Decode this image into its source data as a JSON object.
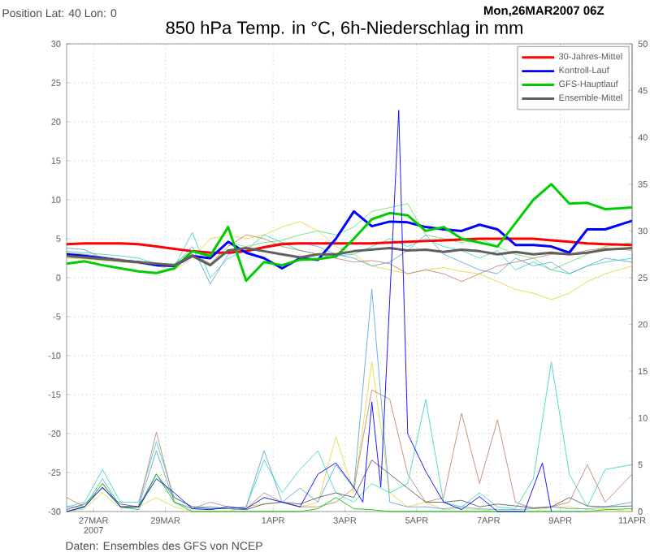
{
  "chart_data": {
    "type": "line",
    "title": "850 hPa Temp. in °C, 6h-Niederschlag in mm",
    "annotations": [
      "Position   Lat: 40 Lon: 0",
      "Mon,26MAR2007  06Z",
      "Daten: Ensembles des GFS von NCEP"
    ],
    "x": [
      "2007-03-26T06:00",
      "2007-03-26T18:00",
      "2007-03-27T06:00",
      "2007-03-27T18:00",
      "2007-03-28T06:00",
      "2007-03-28T18:00",
      "2007-03-29T06:00",
      "2007-03-29T18:00",
      "2007-03-30T06:00",
      "2007-03-30T18:00",
      "2007-03-31T06:00",
      "2007-03-31T18:00",
      "2007-04-01T06:00",
      "2007-04-01T18:00",
      "2007-04-02T06:00",
      "2007-04-02T18:00",
      "2007-04-03T06:00",
      "2007-04-03T18:00",
      "2007-04-04T06:00",
      "2007-04-04T18:00",
      "2007-04-05T06:00",
      "2007-04-05T18:00",
      "2007-04-06T06:00",
      "2007-04-06T18:00",
      "2007-04-07T06:00",
      "2007-04-07T18:00",
      "2007-04-08T06:00",
      "2007-04-08T18:00",
      "2007-04-09T06:00",
      "2007-04-09T18:00",
      "2007-04-10T06:00",
      "2007-04-11T00:00"
    ],
    "series": [
      {
        "color": "#e8d840",
        "values": [
          2.5,
          2.4,
          2.2,
          2.0,
          1.8,
          1.5,
          1.0,
          2.5,
          5.0,
          5.5,
          5.0,
          5.5,
          6.5,
          7.2,
          6.0,
          4.0,
          3.0,
          1.5,
          1.0,
          0.5,
          1.0,
          1.3,
          0.8,
          0.5,
          -0.5,
          -1.5,
          -2.0,
          -2.8,
          -2.0,
          -0.5,
          0.5,
          1.5
        ]
      },
      {
        "color": "#40d8c8",
        "values": [
          3.4,
          3.2,
          3.0,
          2.8,
          2.5,
          1.8,
          1.4,
          5.8,
          0.0,
          2.5,
          3.5,
          5.5,
          4.5,
          3.5,
          3.0,
          2.8,
          3.0,
          4.0,
          5.0,
          4.0,
          5.0,
          4.0,
          3.5,
          2.5,
          3.5,
          1.0,
          2.0,
          1.0,
          0.5,
          1.5,
          2.0,
          2.5
        ]
      },
      {
        "color": "#70e070",
        "values": [
          2.6,
          2.5,
          2.3,
          2.1,
          1.9,
          1.7,
          1.8,
          3.5,
          2.5,
          4.5,
          4.0,
          4.5,
          4.8,
          5.5,
          6.0,
          5.5,
          6.5,
          8.5,
          9.0,
          9.5,
          5.5,
          5.0,
          4.5,
          5.0,
          4.0,
          3.0,
          2.5,
          1.0,
          2.0,
          3.0,
          4.0,
          4.5
        ]
      },
      {
        "color": "#c08870",
        "values": [
          3.2,
          3.0,
          2.7,
          2.4,
          2.0,
          1.8,
          1.7,
          3.0,
          1.8,
          4.0,
          5.5,
          5.0,
          4.0,
          3.5,
          3.0,
          2.5,
          2.0,
          2.2,
          1.8,
          0.5,
          1.0,
          0.5,
          -0.5,
          0.5,
          1.5,
          2.0,
          2.5,
          3.0,
          3.0,
          3.5,
          3.8,
          3.5
        ]
      },
      {
        "color": "#60a8d8",
        "values": [
          3.8,
          3.6,
          2.5,
          2.2,
          2.0,
          1.8,
          1.5,
          4.0,
          -0.8,
          3.0,
          3.5,
          4.0,
          4.5,
          4.5,
          4.0,
          3.0,
          2.5,
          1.5,
          2.0,
          3.5,
          5.5,
          3.0,
          2.0,
          1.0,
          0.5,
          2.5,
          1.5,
          2.0,
          0.5,
          1.5,
          2.5,
          2.0
        ]
      },
      {
        "color": "#e8d840",
        "axis": "y2",
        "values": [
          0,
          0.3,
          2.0,
          0.3,
          0.5,
          1.5,
          0.5,
          0,
          0,
          0,
          0.5,
          0.8,
          1.0,
          0.5,
          1.0,
          8.0,
          2.0,
          16.0,
          2.0,
          0.5,
          1.0,
          0.2,
          0.3,
          0.2,
          0,
          0,
          0,
          0.5,
          0.5,
          0.2,
          0.3,
          0
        ]
      },
      {
        "color": "#40d8c8",
        "axis": "y2",
        "values": [
          0.5,
          1.0,
          4.5,
          1.0,
          1.0,
          7.5,
          1.5,
          0.5,
          0.5,
          0.3,
          0.5,
          5.5,
          2.0,
          4.5,
          6.5,
          2.0,
          1.0,
          3.0,
          2.0,
          3.0,
          12.0,
          1.0,
          0.5,
          2.0,
          0.5,
          0.3,
          3.5,
          16.0,
          4.0,
          0.5,
          4.5,
          5.0
        ]
      },
      {
        "color": "#c08870",
        "axis": "y2",
        "values": [
          1.5,
          0.5,
          3.0,
          0.5,
          0.5,
          8.5,
          1.0,
          0.3,
          1.0,
          0.5,
          0.3,
          2.0,
          1.0,
          0.5,
          0.5,
          1.0,
          2.5,
          13.0,
          12.0,
          4.0,
          1.0,
          1.5,
          10.5,
          3.0,
          9.8,
          1.0,
          0.3,
          0.5,
          1.0,
          5.0,
          1.0,
          4.0
        ]
      },
      {
        "color": "#60a8d8",
        "axis": "y2",
        "values": [
          0.5,
          0.5,
          3.5,
          0.5,
          0.5,
          6.5,
          1.0,
          0.3,
          0.5,
          0.3,
          0.5,
          6.5,
          1.0,
          2.5,
          1.0,
          5.0,
          2.5,
          23.8,
          1.0,
          0.5,
          0.5,
          0.3,
          0.5,
          0.3,
          0.2,
          0.2,
          0.3,
          0.5,
          0.3,
          0.3,
          0.5,
          1.0
        ]
      },
      {
        "color": "#606060",
        "axis": "y2",
        "values": [
          0.2,
          0.8,
          2.5,
          0.8,
          0.5,
          4.0,
          1.5,
          0.5,
          0.3,
          0.3,
          0.2,
          0.8,
          1.0,
          0.8,
          1.5,
          2.0,
          1.5,
          5.5,
          4.0,
          2.5,
          1.0,
          1.0,
          1.2,
          0.5,
          0.8,
          0.6,
          0.4,
          0.5,
          1.5,
          0.6,
          0.5,
          0.6
        ]
      },
      {
        "color": "#00cc00",
        "axis": "y2",
        "values": [
          0,
          0.5,
          3.0,
          0.5,
          0.2,
          4.0,
          1.0,
          0,
          0,
          0,
          0,
          0,
          0,
          0,
          0.3,
          1.5,
          0.3,
          0.2,
          0,
          0,
          0,
          0,
          0,
          0,
          0,
          0,
          0,
          0,
          0,
          0,
          0.2,
          0.3
        ]
      },
      {
        "color": "#0000ff",
        "axis": "y2",
        "x": [
          "2007-03-26T06:00",
          "2007-03-26T18:00",
          "2007-03-27T06:00",
          "2007-03-27T18:00",
          "2007-03-28T06:00",
          "2007-03-28T18:00",
          "2007-03-29T06:00",
          "2007-03-29T18:00",
          "2007-03-30T06:00",
          "2007-03-30T18:00",
          "2007-03-31T06:00",
          "2007-03-31T18:00",
          "2007-04-01T06:00",
          "2007-04-01T18:00",
          "2007-04-02T06:00",
          "2007-04-02T18:00",
          "2007-04-03T06:00",
          "2007-04-03T12:00",
          "2007-04-03T18:00",
          "2007-04-04T00:00",
          "2007-04-04T12:00",
          "2007-04-04T18:00",
          "2007-04-05T06:00",
          "2007-04-05T18:00",
          "2007-04-06T06:00",
          "2007-04-06T18:00",
          "2007-04-07T06:00",
          "2007-04-08T00:00",
          "2007-04-08T12:00",
          "2007-04-08T18:00"
        ],
        "values": [
          0,
          0.5,
          2.6,
          0.5,
          0.5,
          3.5,
          2.0,
          0.3,
          0.2,
          0.5,
          0.3,
          1.5,
          1.0,
          0.5,
          4.0,
          5.2,
          2.6,
          1.0,
          11.7,
          2.6,
          42.9,
          8.3,
          4.3,
          1.0,
          0.2,
          1.6,
          0,
          0,
          5.2,
          0
        ]
      },
      {
        "name": "30-Jahres-Mittel",
        "color": "#ff0000",
        "values": [
          4.3,
          4.4,
          4.4,
          4.4,
          4.3,
          4.0,
          3.7,
          3.4,
          3.2,
          3.2,
          3.4,
          3.9,
          4.3,
          4.4,
          4.4,
          4.4,
          4.4,
          4.4,
          4.5,
          4.6,
          4.7,
          4.8,
          4.9,
          5.0,
          5.0,
          5.0,
          5.0,
          4.8,
          4.6,
          4.4,
          4.3,
          4.2
        ]
      },
      {
        "name": "Kontroll-Lauf",
        "color": "#0000ff",
        "values": [
          3.0,
          2.8,
          2.5,
          2.2,
          2.0,
          1.6,
          1.5,
          2.8,
          2.5,
          4.6,
          3.2,
          2.5,
          1.2,
          2.5,
          2.3,
          5.0,
          8.5,
          6.6,
          7.2,
          7.1,
          6.5,
          6.2,
          6.0,
          6.8,
          6.2,
          4.2,
          4.2,
          4.0,
          3.2,
          6.2,
          6.2,
          7.3
        ]
      },
      {
        "name": "GFS-Hauptlauf",
        "color": "#00cc00",
        "values": [
          1.8,
          2.1,
          1.6,
          1.2,
          0.8,
          0.6,
          1.2,
          3.4,
          2.8,
          6.5,
          -0.4,
          2.0,
          1.6,
          2.3,
          2.4,
          2.7,
          5.0,
          7.5,
          8.3,
          8.0,
          6.0,
          6.5,
          5.0,
          4.5,
          4.0,
          7.0,
          10.0,
          12.0,
          9.5,
          9.6,
          8.8,
          9.0
        ]
      },
      {
        "name": "Ensemble-Mittel",
        "color": "#606060",
        "values": [
          2.8,
          2.6,
          2.4,
          2.2,
          2.0,
          1.8,
          1.6,
          2.8,
          1.6,
          3.5,
          3.8,
          3.4,
          3.0,
          2.6,
          3.0,
          3.0,
          3.4,
          3.6,
          3.8,
          3.5,
          3.6,
          3.3,
          3.6,
          3.4,
          3.0,
          3.3,
          3.0,
          3.2,
          3.0,
          3.2,
          3.6,
          3.8
        ]
      }
    ],
    "xlim": [
      "2007-03-26T06:00",
      "2007-04-11T00:00"
    ],
    "xticks": [
      {
        "value": "2007-03-27",
        "label": "27MAR 2007"
      },
      {
        "value": "2007-03-29",
        "label": "29MAR"
      },
      {
        "value": "2007-04-01",
        "label": "1APR"
      },
      {
        "value": "2007-04-03",
        "label": "3APR"
      },
      {
        "value": "2007-04-05",
        "label": "5APR"
      },
      {
        "value": "2007-04-07",
        "label": "7APR"
      },
      {
        "value": "2007-04-09",
        "label": "9APR"
      },
      {
        "value": "2007-04-11",
        "label": "11APR"
      }
    ],
    "ylim": [
      -30,
      30
    ],
    "yticks": [
      -30,
      -25,
      -20,
      -15,
      -10,
      -5,
      0,
      5,
      10,
      15,
      20,
      25,
      30
    ],
    "y2lim": [
      0,
      50
    ],
    "y2ticks": [
      0,
      5,
      10,
      15,
      20,
      25,
      30,
      35,
      40,
      45,
      50
    ],
    "grid": true,
    "legend": "top right"
  }
}
